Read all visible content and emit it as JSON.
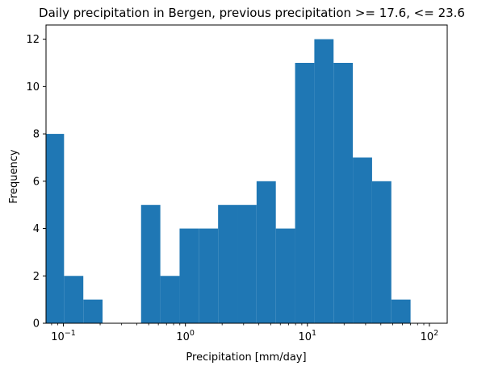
{
  "chart_data": {
    "type": "bar",
    "title": "Daily precipitation in Bergen, previous precipitation >= 17.6, <= 23.6",
    "xlabel": "Precipitation [mm/day]",
    "ylabel": "Frequency",
    "x_scale": "log",
    "xlim": [
      0.072,
      140
    ],
    "ylim": [
      0,
      12.6
    ],
    "grid": false,
    "bar_color": "#1f77b4",
    "x_ticks": [
      {
        "base": "10",
        "exp": "−1",
        "value": 0.1
      },
      {
        "base": "10",
        "exp": "0",
        "value": 1
      },
      {
        "base": "10",
        "exp": "1",
        "value": 10
      },
      {
        "base": "10",
        "exp": "2",
        "value": 100
      }
    ],
    "y_ticks": [
      {
        "label": "0",
        "value": 0
      },
      {
        "label": "2",
        "value": 2
      },
      {
        "label": "4",
        "value": 4
      },
      {
        "label": "6",
        "value": 6
      },
      {
        "label": "8",
        "value": 8
      },
      {
        "label": "10",
        "value": 10
      },
      {
        "label": "12",
        "value": 12
      }
    ],
    "bins": [
      {
        "x0": 0.07,
        "x1": 0.1012,
        "count": 8
      },
      {
        "x0": 0.1012,
        "x1": 0.1456,
        "count": 2
      },
      {
        "x0": 0.1456,
        "x1": 0.2094,
        "count": 1
      },
      {
        "x0": 0.2094,
        "x1": 0.3012,
        "count": 0
      },
      {
        "x0": 0.3012,
        "x1": 0.4331,
        "count": 0
      },
      {
        "x0": 0.4331,
        "x1": 0.6229,
        "count": 5
      },
      {
        "x0": 0.6229,
        "x1": 0.8958,
        "count": 2
      },
      {
        "x0": 0.8958,
        "x1": 1.288,
        "count": 4
      },
      {
        "x0": 1.288,
        "x1": 1.853,
        "count": 4
      },
      {
        "x0": 1.853,
        "x1": 2.665,
        "count": 5
      },
      {
        "x0": 2.665,
        "x1": 3.832,
        "count": 5
      },
      {
        "x0": 3.832,
        "x1": 5.511,
        "count": 6
      },
      {
        "x0": 5.511,
        "x1": 7.926,
        "count": 4
      },
      {
        "x0": 7.926,
        "x1": 11.4,
        "count": 11
      },
      {
        "x0": 11.4,
        "x1": 16.39,
        "count": 12
      },
      {
        "x0": 16.39,
        "x1": 23.57,
        "count": 11
      },
      {
        "x0": 23.57,
        "x1": 33.9,
        "count": 7
      },
      {
        "x0": 33.9,
        "x1": 48.75,
        "count": 6
      },
      {
        "x0": 48.75,
        "x1": 70.1,
        "count": 1
      },
      {
        "x0": 70.1,
        "x1": 100.8,
        "count": 0
      }
    ]
  }
}
